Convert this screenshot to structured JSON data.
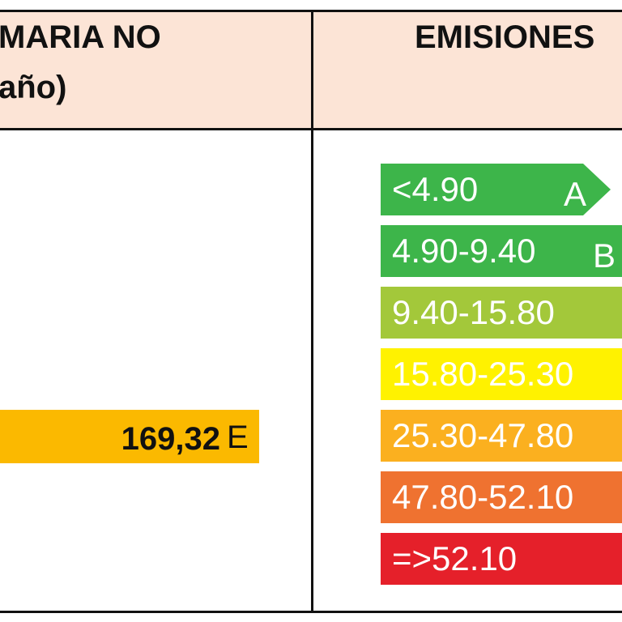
{
  "header": {
    "left_lines": [
      "MARIA NO",
      "año)"
    ],
    "right": "EMISIONES"
  },
  "rating": {
    "value": "169,32",
    "letter": "E"
  },
  "scale": [
    {
      "range": "<4.90",
      "letter": "A"
    },
    {
      "range": "4.90-9.40",
      "letter": "B"
    },
    {
      "range": "9.40-15.80"
    },
    {
      "range": "15.80-25.30"
    },
    {
      "range": "25.30-47.80"
    },
    {
      "range": "47.80-52.10"
    },
    {
      "range": "=>52.10"
    }
  ]
}
